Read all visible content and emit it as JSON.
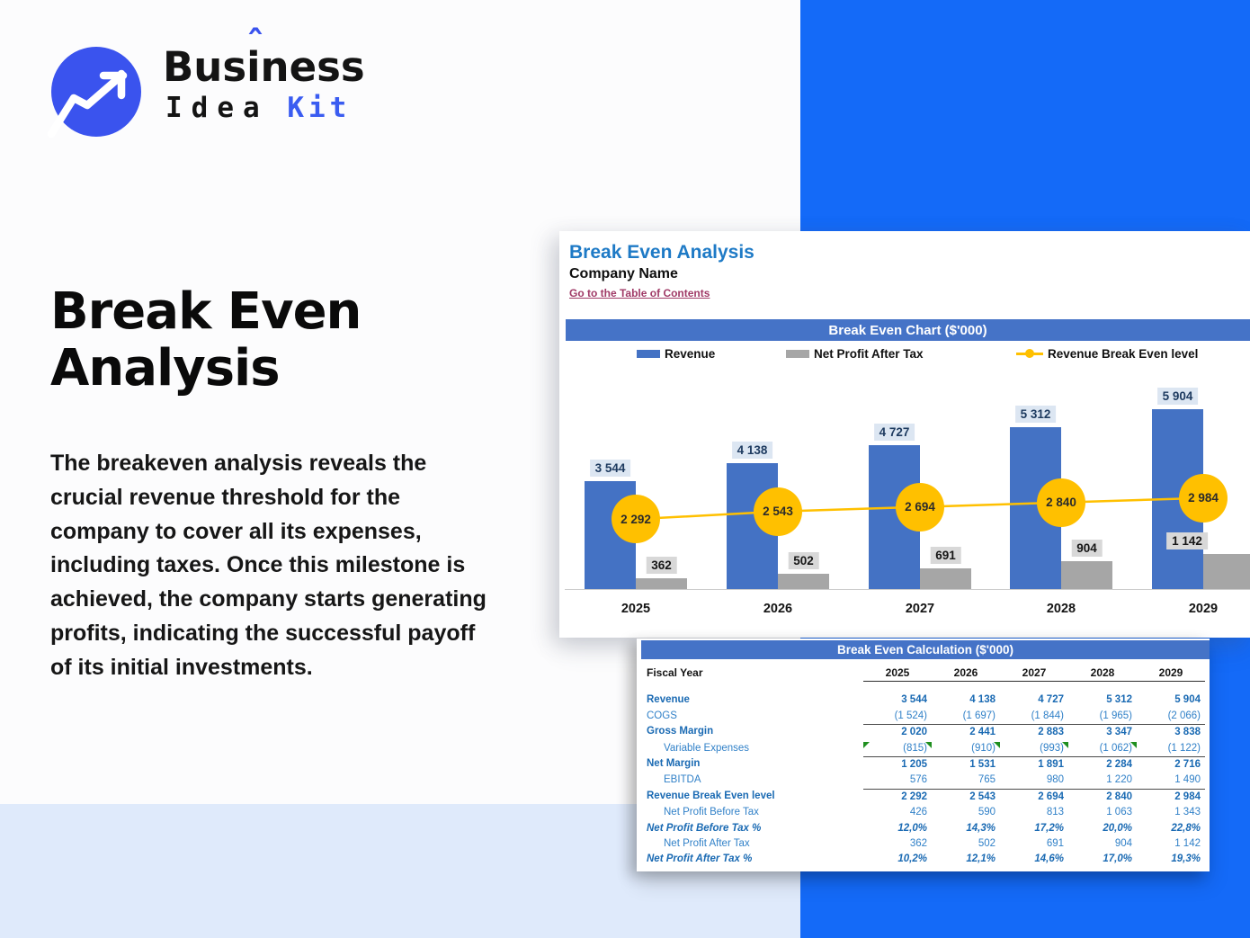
{
  "logo": {
    "brand_top": "Business",
    "caret": "ˆ",
    "brand_bottom_word1": "Idea",
    "brand_bottom_word2": "Kit"
  },
  "hero": {
    "title": "Break Even Analysis",
    "paragraph": "The breakeven analysis reveals the crucial revenue threshold for the company to cover all its expenses, including taxes. Once this milestone is achieved, the company starts generating profits, indicating the successful payoff of its initial investments."
  },
  "sheet": {
    "title": "Break Even Analysis",
    "company": "Company Name",
    "link": "Go to the Table of Contents",
    "chart_header": "Break Even Chart ($'000)",
    "calc_header": "Break Even Calculation ($'000)"
  },
  "chart_data": {
    "type": "bar",
    "title": "Break Even Chart ($'000)",
    "categories": [
      "2025",
      "2026",
      "2027",
      "2028",
      "2029"
    ],
    "series": [
      {
        "name": "Revenue",
        "type": "bar",
        "color": "#4472C4",
        "values": [
          3544,
          4138,
          4727,
          5312,
          5904
        ],
        "labels": [
          "3 544",
          "4 138",
          "4 727",
          "5 312",
          "5 904"
        ]
      },
      {
        "name": "Net Profit After Tax",
        "type": "bar",
        "color": "#A6A6A6",
        "values": [
          362,
          502,
          691,
          904,
          1142
        ],
        "labels": [
          "362",
          "502",
          "691",
          "904",
          "1 142"
        ]
      },
      {
        "name": "Revenue Break Even level",
        "type": "line",
        "color": "#FFC000",
        "values": [
          2292,
          2543,
          2694,
          2840,
          2984
        ],
        "labels": [
          "2 292",
          "2 543",
          "2 694",
          "2 840",
          "2 984"
        ]
      }
    ],
    "legend_position": "top",
    "ylim": [
      0,
      6200
    ],
    "grid": false
  },
  "table": {
    "col_header_label": "Fiscal Year",
    "years": [
      "2025",
      "2026",
      "2027",
      "2028",
      "2029"
    ],
    "rows": [
      {
        "label": "Revenue",
        "values": [
          "3 544",
          "4 138",
          "4 727",
          "5 312",
          "5 904"
        ],
        "style": "bold"
      },
      {
        "label": "COGS",
        "values": [
          "(1 524)",
          "(1 697)",
          "(1 844)",
          "(1 965)",
          "(2 066)"
        ],
        "style": "normal"
      },
      {
        "label": "Gross Margin",
        "values": [
          "2 020",
          "2 441",
          "2 883",
          "3 347",
          "3 838"
        ],
        "style": "bold",
        "border_top": true
      },
      {
        "label": "Variable Expenses",
        "values": [
          "(815)",
          "(910)",
          "(993)",
          "(1 062)",
          "(1 122)"
        ],
        "style": "normal",
        "indent": true,
        "markers": true
      },
      {
        "label": "Net Margin",
        "values": [
          "1 205",
          "1 531",
          "1 891",
          "2 284",
          "2 716"
        ],
        "style": "bold",
        "border_top": true
      },
      {
        "label": "EBITDA",
        "values": [
          "576",
          "765",
          "980",
          "1 220",
          "1 490"
        ],
        "style": "normal",
        "indent": true
      },
      {
        "label": "Revenue Break Even level",
        "values": [
          "2 292",
          "2 543",
          "2 694",
          "2 840",
          "2 984"
        ],
        "style": "bold",
        "border_top": true
      },
      {
        "label": "Net Profit Before Tax",
        "values": [
          "426",
          "590",
          "813",
          "1 063",
          "1 343"
        ],
        "style": "normal",
        "indent": true
      },
      {
        "label": "Net Profit Before Tax %",
        "values": [
          "12,0%",
          "14,3%",
          "17,2%",
          "20,0%",
          "22,8%"
        ],
        "style": "pct"
      },
      {
        "label": "Net Profit After Tax",
        "values": [
          "362",
          "502",
          "691",
          "904",
          "1 142"
        ],
        "style": "normal",
        "indent": true
      },
      {
        "label": "Net Profit After Tax %",
        "values": [
          "10,2%",
          "12,1%",
          "14,6%",
          "17,0%",
          "19,3%"
        ],
        "style": "pct"
      }
    ]
  },
  "colors": {
    "accent_blue_block": "#146af8",
    "light_blue_band": "#dfeafb",
    "logo_blue": "#3a53ee",
    "excel_header_blue": "#4573c7",
    "bar_blue": "#4472C4",
    "bar_gray": "#A6A6A6",
    "line_yellow": "#FFC000",
    "table_text_blue": "#1a6ab3",
    "sheet_title_blue": "#1e7ac6",
    "link_maroon": "#a03a67"
  }
}
